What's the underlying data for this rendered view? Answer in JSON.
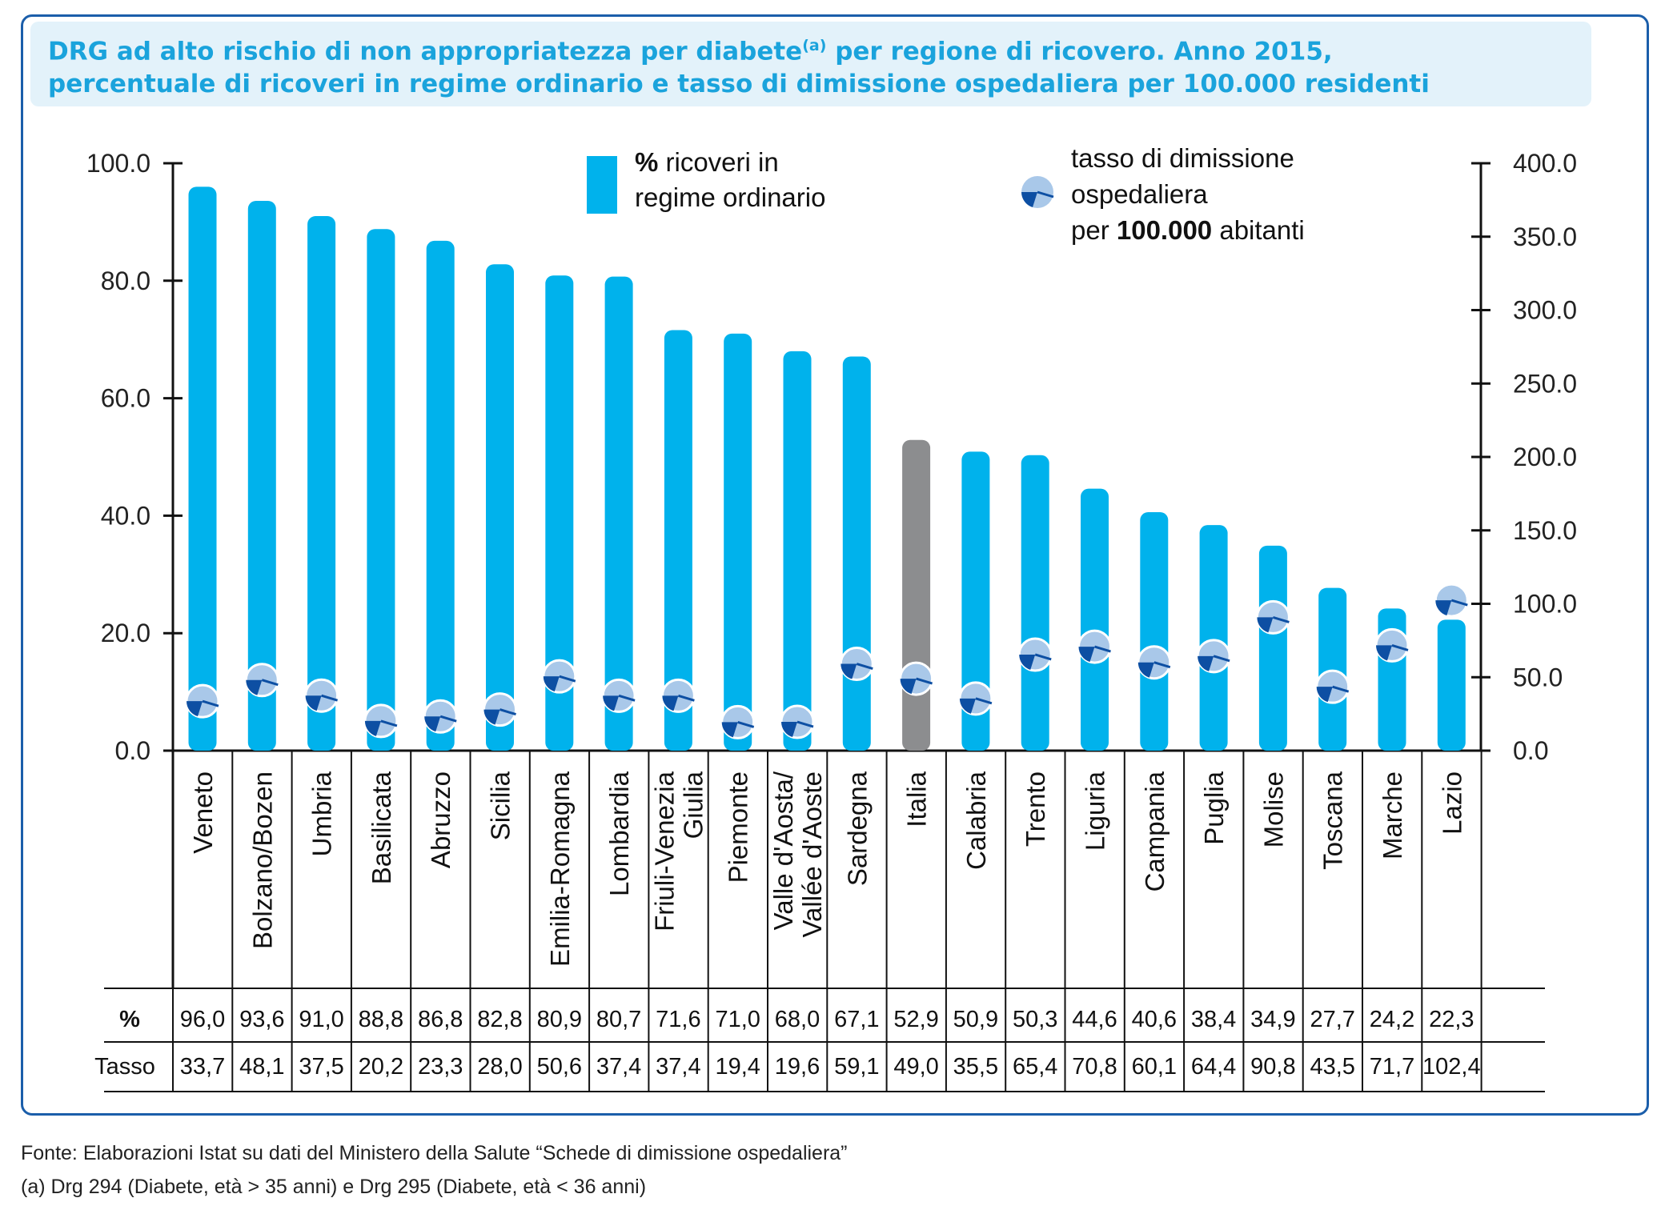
{
  "title": {
    "line1": "DRG ad alto rischio di non appropriatezza per diabete",
    "line1_sup": "(a)",
    "line1_end": " per regione di ricovero. Anno 2015,",
    "line2": "percentuale di ricoveri in regime ordinario e tasso di dimissione ospedaliera per 100.000 residenti"
  },
  "legend": {
    "bar_bold": "%",
    "bar_line1": " ricoveri in",
    "bar_line2": "regime ordinario",
    "marker_line1": "tasso di dimissione",
    "marker_line2": "ospedaliera",
    "marker_line3_pre": "per ",
    "marker_line3_bold": "100.000",
    "marker_line3_post": " abitanti"
  },
  "table": {
    "row1_label": "%",
    "row2_label": "Tasso",
    "pct_text": [
      "96,0",
      "93,6",
      "91,0",
      "88,8",
      "86,8",
      "82,8",
      "80,9",
      "80,7",
      "71,6",
      "71,0",
      "68,0",
      "67,1",
      "52,9",
      "50,9",
      "50,3",
      "44,6",
      "40,6",
      "38,4",
      "34,9",
      "27,7",
      "24,2",
      "22,3"
    ],
    "tasso_text": [
      "33,7",
      "48,1",
      "37,5",
      "20,2",
      "23,3",
      "28,0",
      "50,6",
      "37,4",
      "37,4",
      "19,4",
      "19,6",
      "59,1",
      "49,0",
      "35,5",
      "65,4",
      "70,8",
      "60,1",
      "64,4",
      "90,8",
      "43,5",
      "71,7",
      "102,4"
    ]
  },
  "footer": {
    "source": "Fonte: Elaborazioni Istat su dati del Ministero della Salute “Schede di dimissione ospedaliera”",
    "note": "(a)  Drg 294 (Diabete, età > 35 anni) e Drg 295 (Diabete, età < 36 anni)"
  },
  "colors": {
    "bar": "#00b2ec",
    "bar_highlight": "#8c8d8f",
    "title_text": "#1aa3dc",
    "title_bg": "#e3f2fa",
    "frame": "#1b5eaa",
    "marker_fill": "#a9c8e9",
    "marker_dark": "#0d4fa3"
  },
  "chart_data": {
    "type": "bar",
    "categories": [
      "Veneto",
      "Bolzano/Bozen",
      "Umbria",
      "Basilicata",
      "Abruzzo",
      "Sicilia",
      "Emilia-Romagna",
      "Lombardia",
      "Friuli-Venezia Giulia",
      "Piemonte",
      "Valle d'Aosta/ Vallée d'Aoste",
      "Sardegna",
      "Italia",
      "Calabria",
      "Trento",
      "Liguria",
      "Campania",
      "Puglia",
      "Molise",
      "Toscana",
      "Marche",
      "Lazio"
    ],
    "highlight_category": "Italia",
    "series": [
      {
        "name": "% ricoveri in regime ordinario",
        "axis": "left",
        "type": "bar",
        "values": [
          96.0,
          93.6,
          91.0,
          88.8,
          86.8,
          82.8,
          80.9,
          80.7,
          71.6,
          71.0,
          68.0,
          67.1,
          52.9,
          50.9,
          50.3,
          44.6,
          40.6,
          38.4,
          34.9,
          27.7,
          24.2,
          22.3
        ]
      },
      {
        "name": "tasso di dimissione ospedaliera per 100.000 abitanti",
        "axis": "right",
        "type": "scatter",
        "values": [
          33.7,
          48.1,
          37.5,
          20.2,
          23.3,
          28.0,
          50.6,
          37.4,
          37.4,
          19.4,
          19.6,
          59.1,
          49.0,
          35.5,
          65.4,
          70.8,
          60.1,
          64.4,
          90.8,
          43.5,
          71.7,
          102.4
        ]
      }
    ],
    "y_left": {
      "min": 0,
      "max": 100,
      "ticks": [
        "0.0",
        "20.0",
        "40.0",
        "60.0",
        "80.0",
        "100.0"
      ]
    },
    "y_right": {
      "min": 0,
      "max": 400,
      "ticks": [
        "0.0",
        "50.0",
        "100.0",
        "150.0",
        "200.0",
        "250.0",
        "300.0",
        "350.0",
        "400.0"
      ]
    },
    "grid": false,
    "legend_position": "top"
  }
}
